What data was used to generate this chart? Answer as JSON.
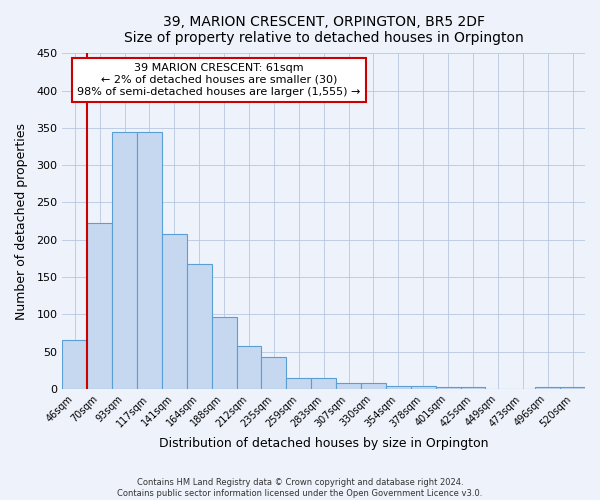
{
  "title": "39, MARION CRESCENT, ORPINGTON, BR5 2DF",
  "subtitle": "Size of property relative to detached houses in Orpington",
  "xlabel": "Distribution of detached houses by size in Orpington",
  "ylabel": "Number of detached properties",
  "bar_labels": [
    "46sqm",
    "70sqm",
    "93sqm",
    "117sqm",
    "141sqm",
    "164sqm",
    "188sqm",
    "212sqm",
    "235sqm",
    "259sqm",
    "283sqm",
    "307sqm",
    "330sqm",
    "354sqm",
    "378sqm",
    "401sqm",
    "425sqm",
    "449sqm",
    "473sqm",
    "496sqm",
    "520sqm"
  ],
  "bar_heights": [
    65,
    222,
    345,
    345,
    208,
    167,
    97,
    57,
    43,
    15,
    15,
    8,
    8,
    4,
    4,
    2,
    2,
    0,
    0,
    2,
    2
  ],
  "bar_color": "#c5d8f0",
  "bar_edge_color": "#5a9fd4",
  "annotation_title": "39 MARION CRESCENT: 61sqm",
  "annotation_line1": "← 2% of detached houses are smaller (30)",
  "annotation_line2": "98% of semi-detached houses are larger (1,555) →",
  "annotation_box_color": "#ffffff",
  "annotation_box_edge": "#cc0000",
  "marker_line_color": "#cc0000",
  "ylim": [
    0,
    450
  ],
  "yticks": [
    0,
    50,
    100,
    150,
    200,
    250,
    300,
    350,
    400,
    450
  ],
  "footer1": "Contains HM Land Registry data © Crown copyright and database right 2024.",
  "footer2": "Contains public sector information licensed under the Open Government Licence v3.0.",
  "bg_color": "#eef2fb",
  "fig_width": 6.0,
  "fig_height": 5.0
}
